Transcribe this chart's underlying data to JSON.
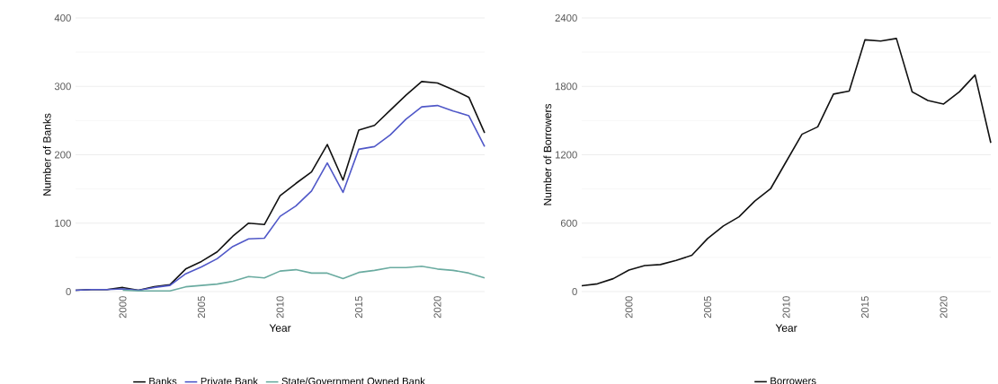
{
  "chart_data": [
    {
      "type": "line",
      "xlabel": "Year",
      "ylabel": "Number of Banks",
      "x": [
        1997,
        1998,
        1999,
        2000,
        2001,
        2002,
        2003,
        2004,
        2005,
        2006,
        2007,
        2008,
        2009,
        2010,
        2011,
        2012,
        2013,
        2014,
        2015,
        2016,
        2017,
        2018,
        2019,
        2020,
        2021,
        2022,
        2023
      ],
      "xlim": [
        1997,
        2023
      ],
      "xticks": [
        2000,
        2005,
        2010,
        2015,
        2020
      ],
      "ylim": [
        0,
        400
      ],
      "yticks": [
        0,
        100,
        200,
        300,
        400
      ],
      "grid": "y",
      "legend": "bottom",
      "line_style": "solid",
      "series": [
        {
          "name": "Banks",
          "color": "#111111",
          "values": [
            2,
            3,
            3,
            6,
            2,
            7,
            10,
            33,
            44,
            58,
            81,
            100,
            98,
            140,
            158,
            175,
            215,
            163,
            236,
            243,
            265,
            287,
            307,
            305,
            295,
            284,
            232
          ]
        },
        {
          "name": "Private Bank",
          "color": "#5058c8",
          "values": [
            2,
            3,
            3,
            4,
            2,
            6,
            9,
            26,
            36,
            48,
            66,
            77,
            78,
            110,
            125,
            147,
            188,
            145,
            208,
            212,
            229,
            252,
            270,
            272,
            264,
            257,
            212
          ]
        },
        {
          "name": "State/Government Owned Bank",
          "color": "#6aaba0",
          "values": [
            null,
            null,
            null,
            2,
            1,
            1,
            1,
            7,
            9,
            11,
            15,
            22,
            20,
            30,
            32,
            27,
            27,
            19,
            28,
            31,
            35,
            35,
            37,
            33,
            31,
            27,
            20
          ]
        }
      ]
    },
    {
      "type": "line",
      "xlabel": "Year",
      "ylabel": "Number of Borrowers",
      "x": [
        1997,
        1998,
        1999,
        2000,
        2001,
        2002,
        2003,
        2004,
        2005,
        2006,
        2007,
        2008,
        2009,
        2010,
        2011,
        2012,
        2013,
        2014,
        2015,
        2016,
        2017,
        2018,
        2019,
        2020,
        2021,
        2022,
        2023
      ],
      "xlim": [
        1997,
        2023
      ],
      "xticks": [
        2000,
        2005,
        2010,
        2015,
        2020
      ],
      "ylim": [
        0,
        2400
      ],
      "yticks": [
        0,
        600,
        1200,
        1800,
        2400
      ],
      "grid": "y",
      "legend": "bottom",
      "line_style": "solid",
      "series": [
        {
          "name": "Borrowers",
          "color": "#111111",
          "values": [
            51,
            68,
            113,
            189,
            228,
            237,
            273,
            318,
            465,
            575,
            656,
            794,
            901,
            1141,
            1380,
            1445,
            1732,
            1758,
            2208,
            2197,
            2220,
            1752,
            1676,
            1645,
            1752,
            1899,
            1304
          ]
        }
      ]
    }
  ]
}
